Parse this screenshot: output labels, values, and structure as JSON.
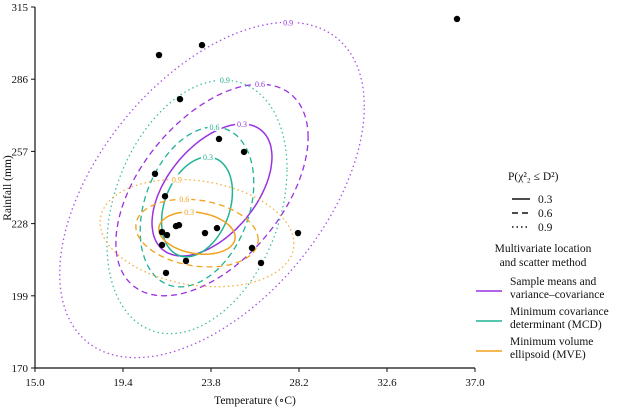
{
  "chart_data": {
    "type": "scatter",
    "xlabel": "Temperature (∘C)",
    "ylabel": "Rainfall (mm)",
    "xlim": [
      15.0,
      37.0
    ],
    "ylim": [
      170,
      315
    ],
    "xticks": [
      "15.0",
      "19.4",
      "23.8",
      "28.2",
      "32.6",
      "37.0"
    ],
    "yticks": [
      "170",
      "199",
      "228",
      "257",
      "286",
      "315"
    ],
    "grid": false,
    "points": [
      [
        36.1,
        310.2
      ],
      [
        21.2,
        295.7
      ],
      [
        23.35,
        299.7
      ],
      [
        22.25,
        278.0
      ],
      [
        24.2,
        262.0
      ],
      [
        25.45,
        256.8
      ],
      [
        21.0,
        248.0
      ],
      [
        21.5,
        239.0
      ],
      [
        22.05,
        227.0
      ],
      [
        22.2,
        227.4
      ],
      [
        21.35,
        224.6
      ],
      [
        21.6,
        223.4
      ],
      [
        23.5,
        224.2
      ],
      [
        24.1,
        226.2
      ],
      [
        21.35,
        219.4
      ],
      [
        22.55,
        213.0
      ],
      [
        21.55,
        208.2
      ],
      [
        25.85,
        218.2
      ],
      [
        26.3,
        212.2
      ],
      [
        28.15,
        224.2
      ]
    ],
    "legend_probability": {
      "title": "P(χ²₂ ≤ D²)",
      "levels": [
        {
          "label": "0.3",
          "p": 0.3,
          "style": "solid"
        },
        {
          "label": "0.6",
          "p": 0.6,
          "style": "dashed"
        },
        {
          "label": "0.9",
          "p": 0.9,
          "style": "dotted"
        }
      ]
    },
    "legend_method": {
      "title_lines": [
        "Multivariate location",
        "and scatter method"
      ],
      "methods": [
        {
          "lines": [
            "Sample means and",
            "variance–covariance"
          ],
          "color": "#9a32e0",
          "center": [
            23.85,
            241.5
          ],
          "cov": [
            [
              12.6,
              55.7
            ],
            [
              55.7,
              985
            ]
          ]
        },
        {
          "lines": [
            "Minimum covariance",
            "determinant (MCD)"
          ],
          "color": "#1fb394",
          "center": [
            23.1,
            234.7
          ],
          "cov": [
            [
              4.4,
              14.9
            ],
            [
              14.9,
              563
            ]
          ]
        },
        {
          "lines": [
            "Minimum volume",
            "ellipsoid (MVE)"
          ],
          "color": "#f2a21c",
          "center": [
            23.1,
            224.2
          ],
          "cov": [
            [
              5.1,
              -4.5
            ],
            [
              -4.5,
              101
            ]
          ]
        }
      ]
    },
    "position_legend": "right"
  }
}
